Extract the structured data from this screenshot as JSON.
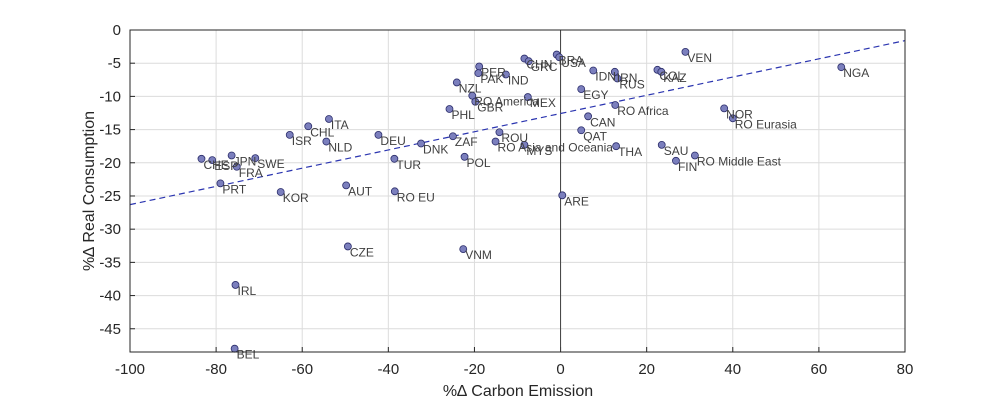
{
  "chart_data": {
    "type": "scatter",
    "xlabel": "%∆ Carbon Emission",
    "ylabel": "%∆ Real Consumption",
    "xlim": [
      -100,
      80
    ],
    "ylim": [
      -48.5,
      0
    ],
    "xticks": [
      -100,
      -80,
      -60,
      -40,
      -20,
      0,
      20,
      40,
      60,
      80
    ],
    "yticks": [
      0,
      -5,
      -10,
      -15,
      -20,
      -25,
      -30,
      -35,
      -40,
      -45
    ],
    "grid": true,
    "colors": {
      "marker_fill": "#7b7fbd",
      "marker_edge": "#2b2d6b",
      "trend_line": "#2b35b0",
      "zero_line": "#404040",
      "grid": "#dcdcdc"
    },
    "trend_line": {
      "x": [
        -100,
        80
      ],
      "y": [
        -26.3,
        -1.6
      ]
    },
    "points": [
      {
        "label": "NGA",
        "x": 65.2,
        "y": -5.6
      },
      {
        "label": "VEN",
        "x": 29.0,
        "y": -3.3
      },
      {
        "label": "COL",
        "x": 22.5,
        "y": -6.0
      },
      {
        "label": "KAZ",
        "x": 23.4,
        "y": -6.3
      },
      {
        "label": "IDN",
        "x": 7.6,
        "y": -6.1
      },
      {
        "label": "IRN",
        "x": 12.6,
        "y": -6.3
      },
      {
        "label": "RUS",
        "x": 13.2,
        "y": -7.3
      },
      {
        "label": "EGY",
        "x": 4.8,
        "y": -8.9
      },
      {
        "label": "BRA",
        "x": -0.9,
        "y": -3.7
      },
      {
        "label": "USA",
        "x": -0.3,
        "y": -4.1
      },
      {
        "label": "CHN",
        "x": -8.4,
        "y": -4.3
      },
      {
        "label": "GRC",
        "x": -7.4,
        "y": -4.7
      },
      {
        "label": "PER",
        "x": -18.9,
        "y": -5.5
      },
      {
        "label": "PAK",
        "x": -19.1,
        "y": -6.5
      },
      {
        "label": "IND",
        "x": -12.7,
        "y": -6.7
      },
      {
        "label": "NZL",
        "x": -24.1,
        "y": -7.9
      },
      {
        "label": "RO America",
        "x": -20.5,
        "y": -9.9
      },
      {
        "label": "MEX",
        "x": -7.6,
        "y": -10.1
      },
      {
        "label": "GBR",
        "x": -19.8,
        "y": -10.8
      },
      {
        "label": "PHL",
        "x": -25.8,
        "y": -11.9
      },
      {
        "label": "RO Africa",
        "x": 12.7,
        "y": -11.3
      },
      {
        "label": "NOR",
        "x": 38.0,
        "y": -11.8
      },
      {
        "label": "RO Eurasia",
        "x": 40.0,
        "y": -13.3
      },
      {
        "label": "CAN",
        "x": 6.4,
        "y": -13.0
      },
      {
        "label": "QAT",
        "x": 4.8,
        "y": -15.1
      },
      {
        "label": "ITA",
        "x": -53.8,
        "y": -13.4
      },
      {
        "label": "CHL",
        "x": -58.6,
        "y": -14.5
      },
      {
        "label": "ISR",
        "x": -62.9,
        "y": -15.8
      },
      {
        "label": "DEU",
        "x": -42.3,
        "y": -15.8
      },
      {
        "label": "NLD",
        "x": -54.4,
        "y": -16.8
      },
      {
        "label": "DNK",
        "x": -32.4,
        "y": -17.1
      },
      {
        "label": "ZAF",
        "x": -25.0,
        "y": -16.0
      },
      {
        "label": "ROU",
        "x": -14.2,
        "y": -15.4
      },
      {
        "label": "RO Asia and Oceania",
        "x": -15.1,
        "y": -16.8
      },
      {
        "label": "MYS",
        "x": -8.4,
        "y": -17.3
      },
      {
        "label": "THA",
        "x": 12.9,
        "y": -17.5
      },
      {
        "label": "SAU",
        "x": 23.5,
        "y": -17.3
      },
      {
        "label": "RO Middle East",
        "x": 31.2,
        "y": -18.9
      },
      {
        "label": "FIN",
        "x": 26.8,
        "y": -19.7
      },
      {
        "label": "POL",
        "x": -22.3,
        "y": -19.1
      },
      {
        "label": "TUR",
        "x": -38.6,
        "y": -19.4
      },
      {
        "label": "JPN",
        "x": -76.4,
        "y": -18.9
      },
      {
        "label": "SWE",
        "x": -70.9,
        "y": -19.3
      },
      {
        "label": "CHE",
        "x": -83.4,
        "y": -19.4
      },
      {
        "label": "ESP",
        "x": -80.9,
        "y": -19.6
      },
      {
        "label": "FRA",
        "x": -75.2,
        "y": -20.6
      },
      {
        "label": "PRT",
        "x": -79.0,
        "y": -23.1
      },
      {
        "label": "AUT",
        "x": -49.8,
        "y": -23.4
      },
      {
        "label": "KOR",
        "x": -65.0,
        "y": -24.4
      },
      {
        "label": "RO EU",
        "x": -38.5,
        "y": -24.3
      },
      {
        "label": "ARE",
        "x": 0.4,
        "y": -24.9
      },
      {
        "label": "CZE",
        "x": -49.4,
        "y": -32.6
      },
      {
        "label": "VNM",
        "x": -22.6,
        "y": -33.0
      },
      {
        "label": "IRL",
        "x": -75.5,
        "y": -38.4
      },
      {
        "label": "BEL",
        "x": -75.7,
        "y": -48.0
      }
    ]
  }
}
